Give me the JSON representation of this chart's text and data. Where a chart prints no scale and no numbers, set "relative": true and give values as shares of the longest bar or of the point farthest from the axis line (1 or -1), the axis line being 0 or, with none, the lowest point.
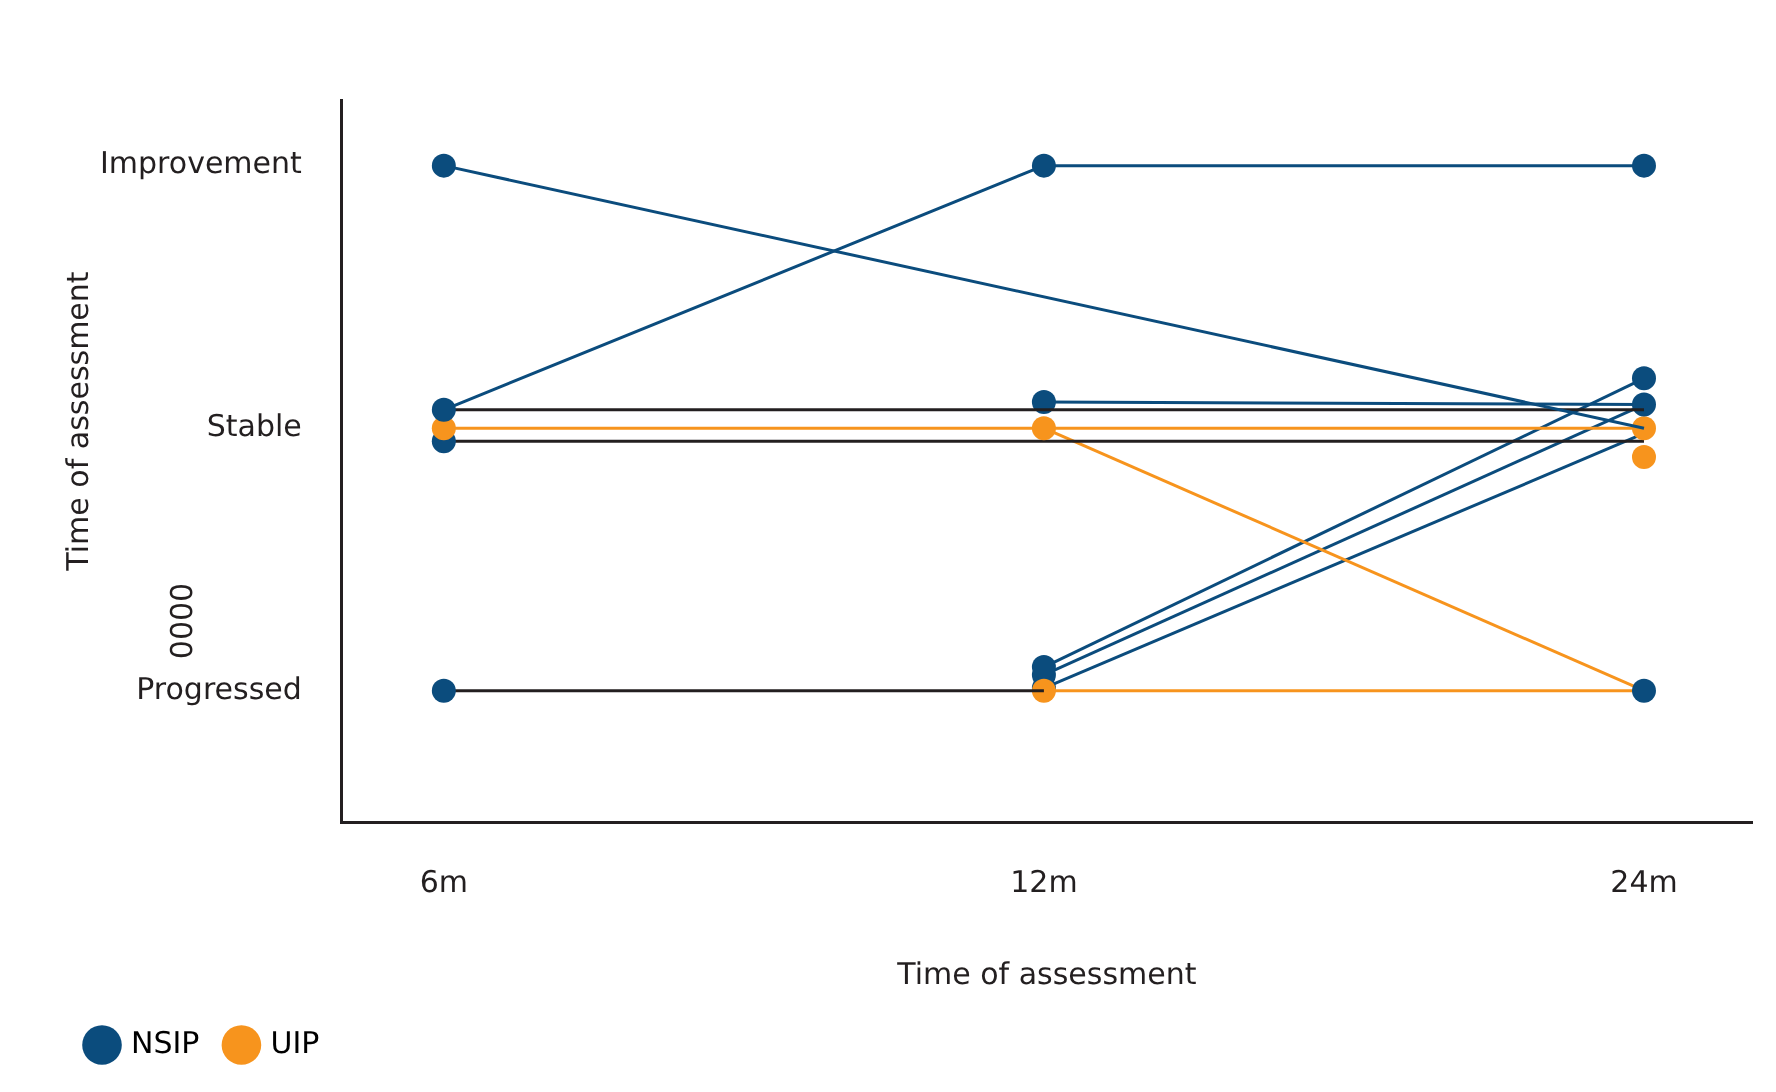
{
  "chart_data": {
    "type": "line",
    "relative": true,
    "xlabel": "Time of assessment",
    "annotations": [
      "Time of assessment",
      "0000"
    ],
    "categories": [
      "6m",
      "12m",
      "24m"
    ],
    "y_categories": [
      "Improvement",
      "Stable",
      "Progressed"
    ],
    "grid": false,
    "legend": "bottom left",
    "marker": "circle",
    "series": [
      {
        "name": "NSIP",
        "color": "#0b4c7d",
        "values": [
          1,
          null,
          0.6
        ],
        "colors": [
          "#0b4c7d",
          null,
          null
        ]
      },
      {
        "color": "#0b4c7d",
        "values": [
          0.628,
          1,
          1
        ],
        "colors": [
          "#0b4c7d",
          "#0b4c7d",
          "#0b4c7d"
        ]
      },
      {
        "color": "#231f20",
        "marker": "none",
        "values": [
          0.628,
          0.628,
          0.628
        ]
      },
      {
        "color": "#0b4c7d",
        "values": [
          null,
          0.64,
          0.636
        ],
        "colors": [
          null,
          "#0b4c7d",
          "#0b4c7d"
        ]
      },
      {
        "name": "UIP",
        "color": "#f7941d",
        "values": [
          0.6,
          0.6,
          0.6
        ],
        "colors": [
          "#f7941d",
          "#f7941d",
          "#f7941d"
        ]
      },
      {
        "color": "#231f20",
        "values": [
          0.58,
          null,
          0.58
        ],
        "colors": [
          "#0b4c7d",
          null,
          null
        ]
      },
      {
        "color": "#231f20",
        "values": [
          0.2,
          0.2,
          null
        ],
        "colors": [
          "#0b4c7d",
          null,
          null
        ]
      },
      {
        "color": "#f7941d",
        "values": [
          null,
          0.6,
          0.2
        ],
        "colors": [
          null,
          null,
          "#0b4c7d"
        ]
      },
      {
        "color": "#f7941d",
        "values": [
          null,
          0.2,
          0.2
        ],
        "colors": [
          null,
          "#f7941d",
          null
        ]
      },
      {
        "color": "#0b4c7d",
        "values": [
          null,
          0.236,
          0.676
        ],
        "colors": [
          null,
          "#0b4c7d",
          "#0b4c7d"
        ]
      },
      {
        "color": "#0b4c7d",
        "values": [
          null,
          0.224,
          0.636
        ],
        "colors": [
          null,
          "#0b4c7d",
          null
        ]
      },
      {
        "color": "#0b4c7d",
        "values": [
          null,
          0.204,
          0.592
        ],
        "colors": [
          null,
          "#0b4c7d",
          null
        ]
      },
      {
        "color": "#f7941d",
        "values": [
          null,
          null,
          0.556
        ],
        "colors": [
          null,
          null,
          "#f7941d"
        ]
      }
    ]
  }
}
